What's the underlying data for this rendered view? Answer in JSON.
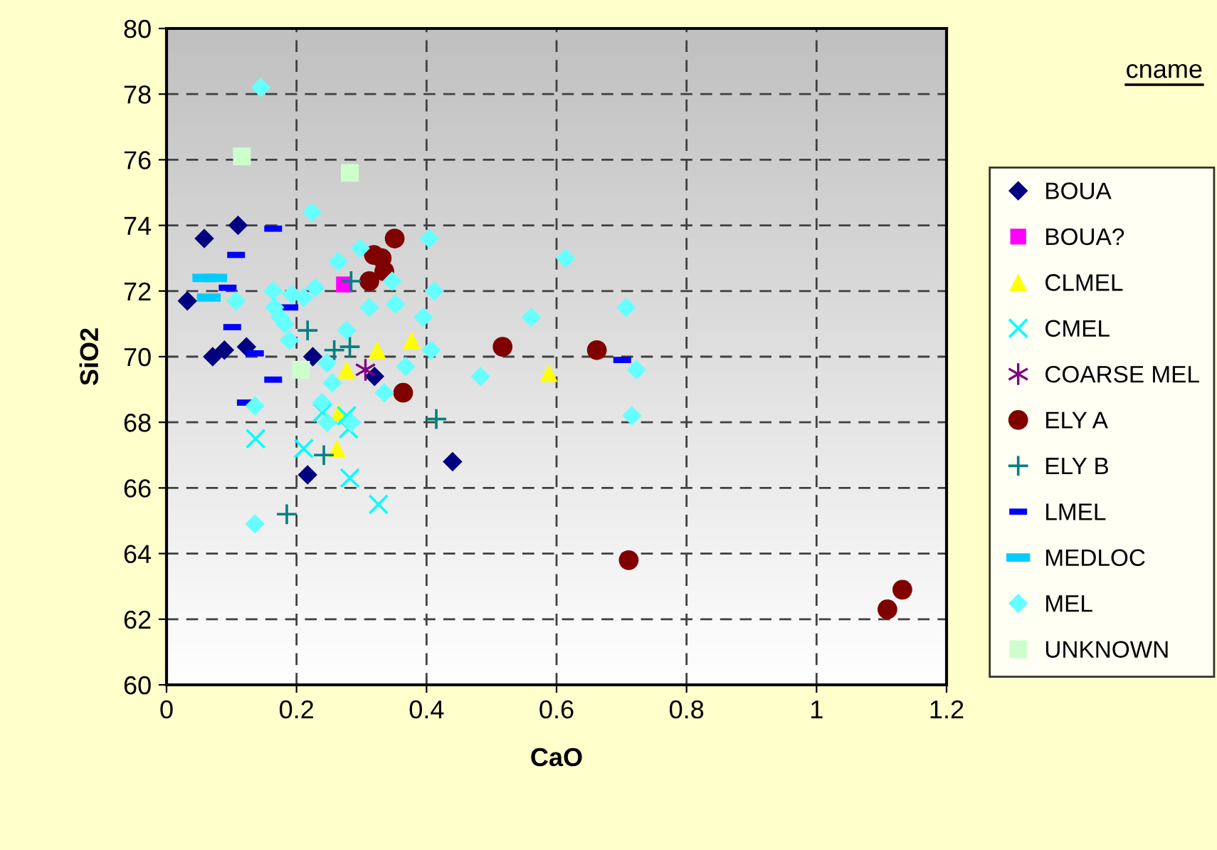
{
  "chart_data": {
    "type": "scatter",
    "xlabel": "CaO",
    "ylabel": "SiO2",
    "legend_title": "cname",
    "xlim": [
      0,
      1.2
    ],
    "xticks": [
      0,
      {
        "value": 0.2,
        "label": "0.2"
      },
      {
        "value": 0.4,
        "label": "0.4"
      },
      {
        "value": 0.6,
        "label": "0.6"
      },
      {
        "value": 0.8,
        "label": "0.8"
      },
      1,
      {
        "value": 1.2,
        "label": "1.2"
      }
    ],
    "ylim": [
      60,
      80
    ],
    "yticks": [
      60,
      62,
      64,
      66,
      68,
      70,
      72,
      74,
      76,
      78,
      80
    ],
    "grid": true,
    "line_style": "dashed",
    "legend": "right",
    "series": [
      {
        "name": "BOUA",
        "color": "#000080",
        "marker": "diamond",
        "x": [
          0.032,
          0.058,
          0.11,
          0.071,
          0.089,
          0.123,
          0.225,
          0.32,
          0.217,
          0.44
        ],
        "values": [
          71.7,
          73.6,
          74.0,
          70.0,
          70.2,
          70.3,
          70.0,
          69.4,
          66.4,
          66.8
        ]
      },
      {
        "name": "BOUA?",
        "color": "#ff00ff",
        "marker": "square",
        "x": [
          0.273
        ],
        "values": [
          72.2
        ]
      },
      {
        "name": "CLMEL",
        "color": "#ffff00",
        "marker": "triangle",
        "x": [
          0.324,
          0.377,
          0.277,
          0.262,
          0.265,
          0.588
        ],
        "values": [
          70.2,
          70.5,
          69.6,
          67.2,
          68.3,
          69.5
        ]
      },
      {
        "name": "CMEL",
        "color": "#00ffff",
        "marker": "x",
        "x": [
          0.137,
          0.211,
          0.282,
          0.326,
          0.24,
          0.277,
          0.28
        ],
        "values": [
          67.5,
          67.2,
          66.3,
          65.5,
          68.3,
          68.2,
          67.8
        ]
      },
      {
        "name": "COARSE MEL",
        "color": "#800080",
        "marker": "cross",
        "x": [
          0.306
        ],
        "values": [
          69.6
        ]
      },
      {
        "name": "ELY A",
        "color": "#800000",
        "marker": "circle",
        "x": [
          0.351,
          0.319,
          0.331,
          0.312,
          0.335,
          0.364,
          0.517,
          0.662,
          0.711,
          1.109,
          1.132
        ],
        "values": [
          73.6,
          73.1,
          73.0,
          72.3,
          72.6,
          68.9,
          70.3,
          70.2,
          63.8,
          62.3,
          62.9
        ]
      },
      {
        "name": "ELY B",
        "color": "#008080",
        "marker": "plus",
        "x": [
          0.284,
          0.217,
          0.258,
          0.282,
          0.242,
          0.185,
          0.415
        ],
        "values": [
          72.3,
          70.8,
          70.2,
          70.3,
          67.0,
          65.2,
          68.1
        ]
      },
      {
        "name": "LMEL",
        "color": "#0000ff",
        "marker": "square",
        "x": [
          0.164,
          0.107,
          0.094,
          0.189,
          0.101,
          0.136,
          0.164,
          0.122,
          0.701
        ],
        "values": [
          73.9,
          73.1,
          72.1,
          71.5,
          70.9,
          70.1,
          69.3,
          68.6,
          69.9
        ]
      },
      {
        "name": "MEDLOC",
        "color": "#00ccff",
        "marker": "square",
        "x": [
          0.058,
          0.075,
          0.065
        ],
        "values": [
          72.4,
          72.4,
          71.8
        ]
      },
      {
        "name": "MEL",
        "color": "#66ffff",
        "marker": "diamond",
        "x": [
          0.145,
          0.224,
          0.264,
          0.298,
          0.404,
          0.347,
          0.412,
          0.312,
          0.352,
          0.395,
          0.407,
          0.107,
          0.164,
          0.166,
          0.175,
          0.182,
          0.193,
          0.211,
          0.229,
          0.277,
          0.189,
          0.247,
          0.255,
          0.136,
          0.239,
          0.247,
          0.284,
          0.368,
          0.136,
          0.335,
          0.614,
          0.561,
          0.707,
          0.483,
          0.723,
          0.716
        ],
        "values": [
          78.2,
          74.4,
          72.9,
          73.3,
          73.6,
          72.3,
          72.0,
          71.5,
          71.6,
          71.2,
          70.2,
          71.7,
          72.0,
          71.5,
          71.2,
          71.0,
          71.9,
          71.8,
          72.1,
          70.8,
          70.5,
          69.8,
          69.2,
          68.5,
          68.6,
          68.0,
          68.0,
          69.7,
          64.9,
          68.9,
          73.0,
          71.2,
          71.5,
          69.4,
          69.6,
          68.2
        ]
      },
      {
        "name": "UNKNOWN",
        "color": "#ccffcc",
        "marker": "square",
        "x": [
          0.116,
          0.282,
          0.207
        ],
        "values": [
          76.1,
          75.6,
          69.6
        ]
      }
    ]
  }
}
